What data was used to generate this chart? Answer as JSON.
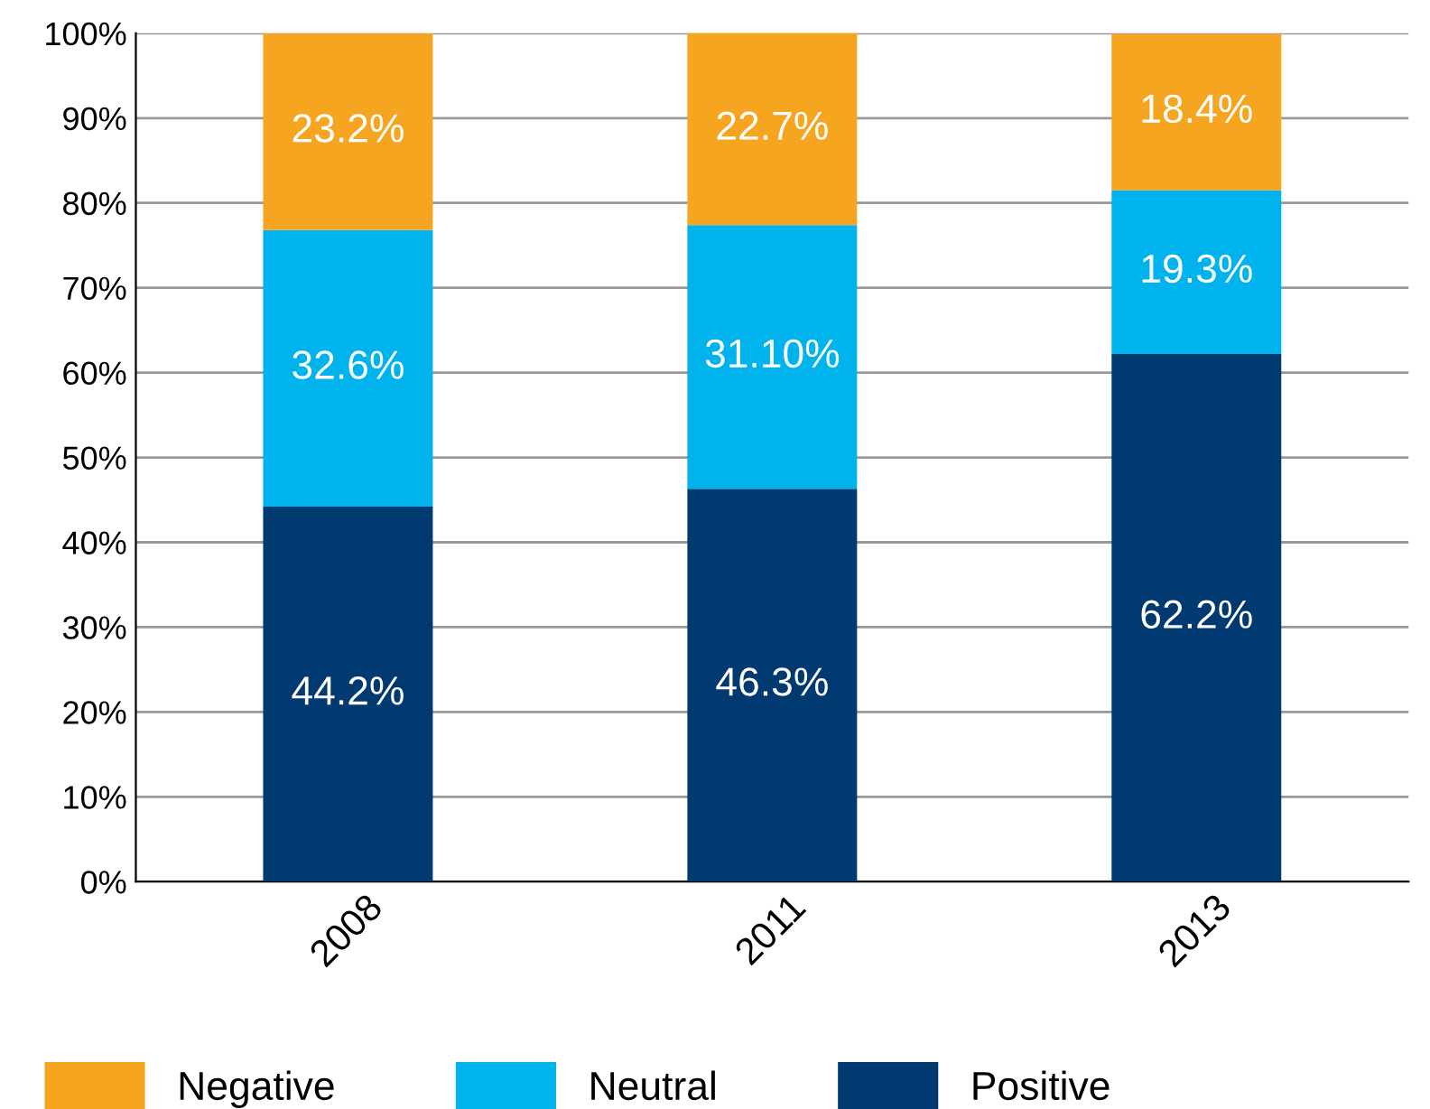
{
  "chart_data": {
    "type": "bar",
    "stacked": true,
    "categories": [
      "2008",
      "2011",
      "2013"
    ],
    "series": [
      {
        "name": "Positive",
        "color": "#003a70",
        "values": [
          44.2,
          46.3,
          62.2
        ],
        "value_labels": [
          "44.2%",
          "46.3%",
          "62.2%"
        ]
      },
      {
        "name": "Neutral",
        "color": "#00b3ec",
        "values": [
          32.6,
          31.1,
          19.3
        ],
        "value_labels": [
          "32.6%",
          "31.10%",
          "19.3%"
        ]
      },
      {
        "name": "Negative",
        "color": "#f6a521",
        "values": [
          23.2,
          22.7,
          18.4
        ],
        "value_labels": [
          "23.2%",
          "22.7%",
          "18.4%"
        ]
      }
    ],
    "ylim": [
      0,
      100
    ],
    "yticks": [
      {
        "value": 0,
        "label": "0%"
      },
      {
        "value": 10,
        "label": "10%"
      },
      {
        "value": 20,
        "label": "20%"
      },
      {
        "value": 30,
        "label": "30%"
      },
      {
        "value": 40,
        "label": "40%"
      },
      {
        "value": 50,
        "label": "50%"
      },
      {
        "value": 60,
        "label": "60%"
      },
      {
        "value": 70,
        "label": "70%"
      },
      {
        "value": 80,
        "label": "80%"
      },
      {
        "value": 90,
        "label": "90%"
      },
      {
        "value": 100,
        "label": "100%"
      }
    ],
    "grid": "y",
    "legend": "bottom"
  }
}
